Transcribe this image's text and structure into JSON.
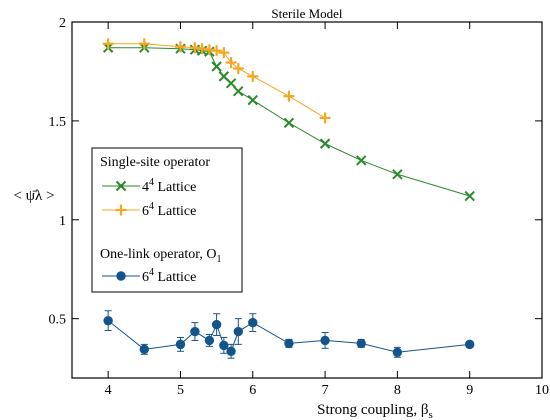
{
  "chart_data": {
    "type": "scatter",
    "title": "Sterile Model",
    "xlabel": "Strong coupling, β",
    "xlabel_sub": "s",
    "ylabel": "< ψ̄λ >",
    "xlim": [
      3.5,
      10
    ],
    "ylim": [
      0.2,
      2
    ],
    "xticks": [
      4,
      5,
      6,
      7,
      8,
      9,
      10
    ],
    "yticks": [
      0.5,
      1,
      1.5,
      2
    ],
    "xtick_labels": [
      "4",
      "5",
      "6",
      "7",
      "8",
      "9",
      "10"
    ],
    "ytick_labels": [
      "0.5",
      "1",
      "1.5",
      "2"
    ],
    "grid": false,
    "legend": {
      "placement": "left-middle",
      "groups": [
        {
          "title": "Single-site operator",
          "entries": [
            {
              "series_index": 0,
              "label": "4",
              "sup": "4",
              "suffix": " Lattice"
            },
            {
              "series_index": 1,
              "label": "6",
              "sup": "4",
              "suffix": " Lattice"
            }
          ]
        },
        {
          "title": "One-link operator, O",
          "title_sub": "1",
          "entries": [
            {
              "series_index": 2,
              "label": "6",
              "sup": "4",
              "suffix": " Lattice"
            }
          ]
        }
      ]
    },
    "series": [
      {
        "name": "4⁴ Lattice",
        "group": "Single-site operator",
        "marker": "x",
        "color": "#2a8a2a",
        "x": [
          4.0,
          4.5,
          5.0,
          5.2,
          5.3,
          5.4,
          5.5,
          5.6,
          5.7,
          5.8,
          6.0,
          6.5,
          7.0,
          7.5,
          8.0,
          9.0
        ],
        "y": [
          1.87,
          1.87,
          1.865,
          1.86,
          1.855,
          1.85,
          1.775,
          1.725,
          1.69,
          1.65,
          1.605,
          1.49,
          1.385,
          1.3,
          1.23,
          1.12
        ]
      },
      {
        "name": "6⁴ Lattice",
        "group": "Single-site operator",
        "marker": "+",
        "color": "#f5a623",
        "x": [
          4.0,
          4.5,
          5.0,
          5.2,
          5.3,
          5.4,
          5.5,
          5.6,
          5.7,
          5.8,
          6.0,
          6.5,
          7.0
        ],
        "y": [
          1.89,
          1.89,
          1.875,
          1.87,
          1.865,
          1.86,
          1.855,
          1.845,
          1.795,
          1.765,
          1.725,
          1.625,
          1.515
        ]
      },
      {
        "name": "6⁴ Lattice",
        "group": "One-link operator, O1",
        "marker": "o",
        "color": "#14548c",
        "x": [
          4.0,
          4.5,
          5.0,
          5.2,
          5.4,
          5.5,
          5.6,
          5.7,
          5.8,
          6.0,
          6.5,
          7.0,
          7.5,
          8.0,
          9.0
        ],
        "y": [
          0.49,
          0.345,
          0.37,
          0.435,
          0.39,
          0.47,
          0.365,
          0.335,
          0.435,
          0.48,
          0.375,
          0.39,
          0.375,
          0.33,
          0.37
        ],
        "err": [
          0.05,
          0.025,
          0.035,
          0.045,
          0.03,
          0.055,
          0.04,
          0.035,
          0.065,
          0.045,
          0.02,
          0.04,
          0.02,
          0.025,
          0.015
        ]
      }
    ]
  }
}
